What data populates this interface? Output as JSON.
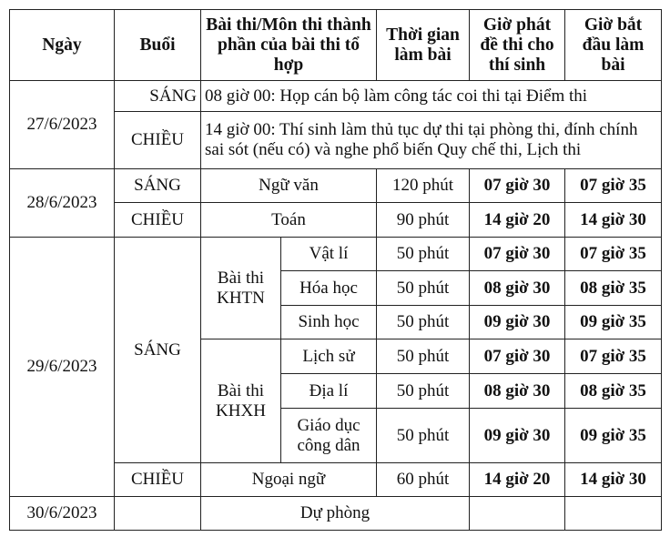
{
  "headers": {
    "ngay": "Ngày",
    "buoi": "Buổi",
    "bai_thi": "Bài thi/Môn thi thành phần của bài thi tổ hợp",
    "thoi_gian": "Thời gian làm bài",
    "gio_phat": "Giờ phát đề thi cho thí sinh",
    "gio_bat_dau": "Giờ bắt đầu làm bài"
  },
  "d1": {
    "date": "27/6/2023",
    "sang": "SÁNG",
    "sang_text": "08 giờ 00: Họp cán bộ làm công tác coi thi tại Điểm thi",
    "chieu": "CHIỀU",
    "chieu_text": "14 giờ 00: Thí sinh làm thủ tục dự thi tại phòng thi, đính chính sai sót (nếu có) và nghe phổ biến Quy chế thi, Lịch thi"
  },
  "d2": {
    "date": "28/6/2023",
    "rows": [
      {
        "buoi": "SÁNG",
        "mon": "Ngữ văn",
        "time": "120 phút",
        "phat": "07 giờ 30",
        "bat_dau": "07 giờ 35"
      },
      {
        "buoi": "CHIỀU",
        "mon": "Toán",
        "time": "90 phút",
        "phat": "14 giờ 20",
        "bat_dau": "14 giờ 30"
      }
    ]
  },
  "d3": {
    "date": "29/6/2023",
    "sang": "SÁNG",
    "khtn": "Bài thi KHTN",
    "khxh": "Bài thi KHXH",
    "rows": [
      {
        "mon": "Vật lí",
        "time": "50 phút",
        "phat": "07 giờ 30",
        "bat_dau": "07 giờ 35"
      },
      {
        "mon": "Hóa học",
        "time": "50 phút",
        "phat": "08 giờ 30",
        "bat_dau": "08 giờ 35"
      },
      {
        "mon": "Sinh học",
        "time": "50 phút",
        "phat": "09 giờ 30",
        "bat_dau": "09 giờ 35"
      },
      {
        "mon": "Lịch sử",
        "time": "50 phút",
        "phat": "07 giờ 30",
        "bat_dau": "07 giờ 35"
      },
      {
        "mon": "Địa lí",
        "time": "50 phút",
        "phat": "08 giờ 30",
        "bat_dau": "08 giờ 35"
      },
      {
        "mon": "Giáo dục công dân",
        "time": "50 phút",
        "phat": "09 giờ 30",
        "bat_dau": "09 giờ 35"
      }
    ],
    "chieu": {
      "buoi": "CHIỀU",
      "mon": "Ngoại ngữ",
      "time": "60 phút",
      "phat": "14 giờ 20",
      "bat_dau": "14 giờ 30"
    }
  },
  "d4": {
    "date": "30/6/2023",
    "text": "Dự phòng"
  }
}
